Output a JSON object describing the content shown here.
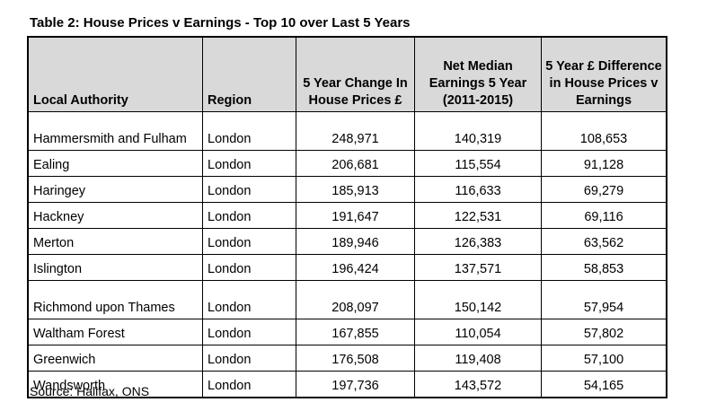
{
  "title": "Table 2: House Prices v Earnings - Top 10 over Last 5 Years",
  "headers": {
    "local_authority": "Local Authority",
    "region": "Region",
    "change": "5 Year Change In House Prices £",
    "earnings": "Net Median Earnings 5 Year (2011-2015)",
    "difference": "5 Year £ Difference in House Prices v Earnings"
  },
  "rows": [
    {
      "authority": "Hammersmith and Fulham",
      "region": "London",
      "change": "248,971",
      "earnings": "140,319",
      "difference": "108,653"
    },
    {
      "authority": "Ealing",
      "region": "London",
      "change": "206,681",
      "earnings": "115,554",
      "difference": "91,128"
    },
    {
      "authority": "Haringey",
      "region": "London",
      "change": "185,913",
      "earnings": "116,633",
      "difference": "69,279"
    },
    {
      "authority": "Hackney",
      "region": "London",
      "change": "191,647",
      "earnings": "122,531",
      "difference": "69,116"
    },
    {
      "authority": "Merton",
      "region": "London",
      "change": "189,946",
      "earnings": "126,383",
      "difference": "63,562"
    },
    {
      "authority": "Islington",
      "region": "London",
      "change": "196,424",
      "earnings": "137,571",
      "difference": "58,853"
    },
    {
      "authority": "Richmond upon Thames",
      "region": "London",
      "change": "208,097",
      "earnings": "150,142",
      "difference": "57,954"
    },
    {
      "authority": "Waltham Forest",
      "region": "London",
      "change": "167,855",
      "earnings": "110,054",
      "difference": "57,802"
    },
    {
      "authority": "Greenwich",
      "region": "London",
      "change": "176,508",
      "earnings": "119,408",
      "difference": "57,100"
    },
    {
      "authority": "Wandsworth",
      "region": "London",
      "change": "197,736",
      "earnings": "143,572",
      "difference": "54,165"
    }
  ],
  "source": "Source: Halifax, ONS"
}
